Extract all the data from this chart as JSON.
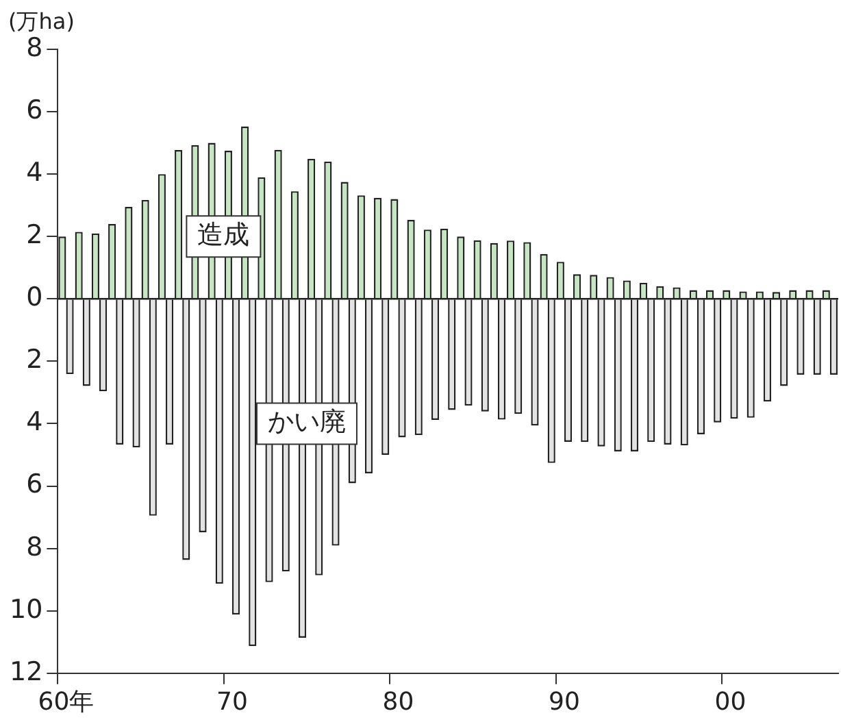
{
  "chart_data": {
    "type": "bar",
    "ylabel": "(万ha)",
    "categories": [
      "60年",
      null,
      null,
      null,
      null,
      null,
      null,
      null,
      null,
      null,
      "70",
      null,
      null,
      null,
      null,
      null,
      null,
      null,
      null,
      null,
      "80",
      null,
      null,
      null,
      null,
      null,
      null,
      null,
      null,
      null,
      "90",
      null,
      null,
      null,
      null,
      null,
      null,
      null,
      null,
      null,
      "00",
      null,
      null,
      null,
      null,
      null,
      null
    ],
    "series": [
      {
        "name": "造成",
        "color": "#c6e6c3",
        "values": [
          2.0,
          2.15,
          2.1,
          2.4,
          2.95,
          3.17,
          4.0,
          4.77,
          4.93,
          5.0,
          4.75,
          5.53,
          3.9,
          4.78,
          3.45,
          4.49,
          4.4,
          3.75,
          3.32,
          3.24,
          3.2,
          2.53,
          2.22,
          2.25,
          2.0,
          1.88,
          1.79,
          1.87,
          1.82,
          1.44,
          1.19,
          0.79,
          0.77,
          0.7,
          0.59,
          0.52,
          0.41,
          0.37,
          0.28,
          0.28,
          0.28,
          0.24,
          0.24,
          0.22,
          0.28,
          0.28,
          0.28
        ]
      },
      {
        "name": "かい廃",
        "color": "#e3e3e3",
        "values": [
          -2.41,
          -2.79,
          -2.96,
          -4.67,
          -4.76,
          -6.95,
          -4.67,
          -8.37,
          -7.48,
          -9.13,
          -10.12,
          -11.13,
          -9.08,
          -8.74,
          -10.86,
          -8.86,
          -7.91,
          -5.91,
          -5.59,
          -5.0,
          -4.44,
          -4.37,
          -3.88,
          -3.56,
          -3.42,
          -3.61,
          -3.87,
          -3.69,
          -4.06,
          -5.26,
          -4.58,
          -4.59,
          -4.73,
          -4.89,
          -4.89,
          -4.59,
          -4.67,
          -4.7,
          -4.34,
          -3.96,
          -3.84,
          -3.81,
          -3.29,
          -2.79,
          -2.43,
          -2.43,
          -2.43
        ]
      }
    ],
    "ylim": [
      -12,
      8
    ],
    "yticks": [
      {
        "value": -12,
        "label": "12"
      },
      {
        "value": -10,
        "label": "10"
      },
      {
        "value": -8,
        "label": "8"
      },
      {
        "value": -6,
        "label": "6"
      },
      {
        "value": -4,
        "label": "4"
      },
      {
        "value": -2,
        "label": "2"
      },
      0,
      2,
      4,
      6,
      8
    ]
  }
}
